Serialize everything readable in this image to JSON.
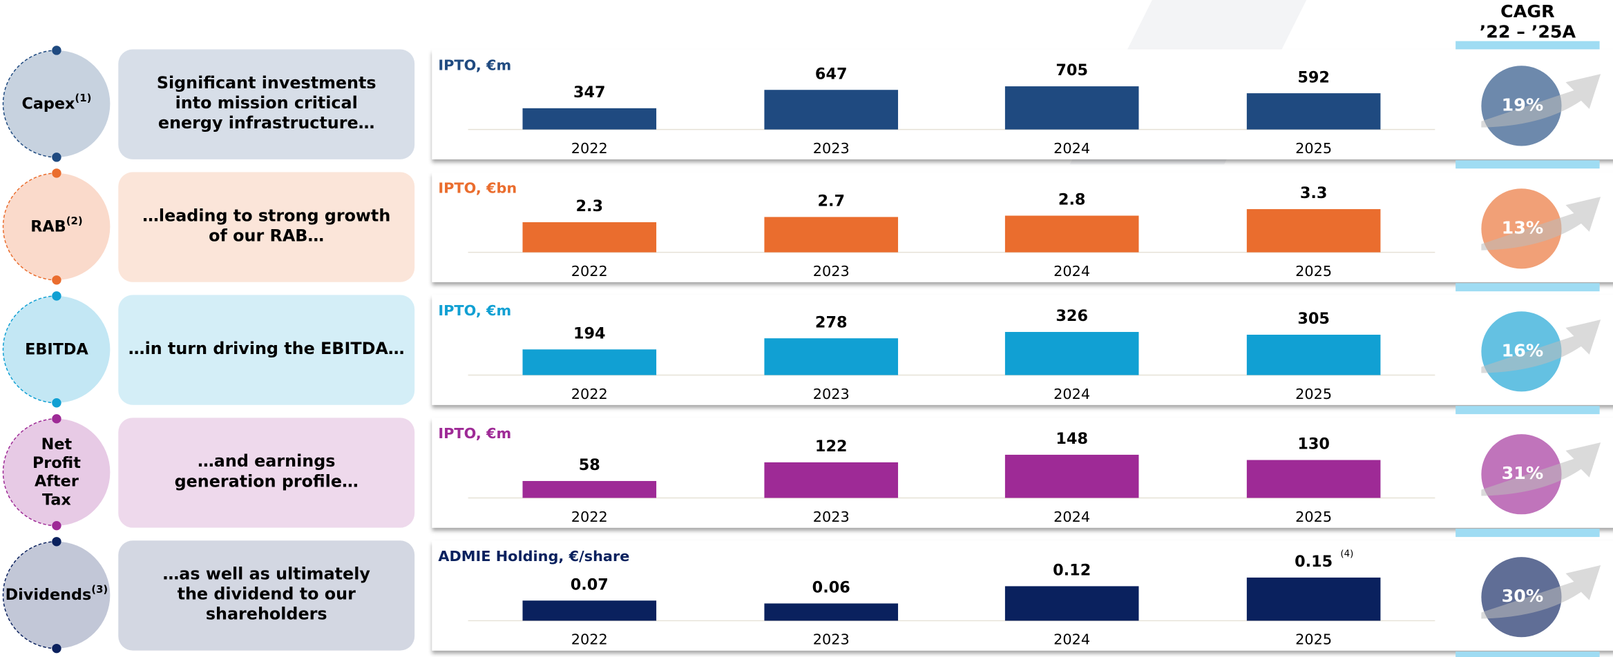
{
  "header": {
    "title_lines": [
      "CAGR",
      "’22 – ’25A"
    ]
  },
  "rows": [
    {
      "label_lines": [
        "Capex"
      ],
      "label_note": "(1)",
      "description_lines": [
        "Significant investments",
        "into mission critical",
        "energy infrastructure…"
      ],
      "cagr": "19%"
    },
    {
      "label_lines": [
        "RAB"
      ],
      "label_note": "(2)",
      "description_lines": [
        "…leading to strong growth",
        "of our RAB…"
      ],
      "cagr": "13%"
    },
    {
      "label_lines": [
        "EBITDA"
      ],
      "description_lines": [
        "…in turn driving the EBITDA…"
      ],
      "cagr": "16%"
    },
    {
      "label_lines": [
        "Net",
        "Profit",
        "After",
        "Tax"
      ],
      "description_lines": [
        "…and earnings",
        "generation profile…"
      ],
      "cagr": "31%"
    },
    {
      "label_lines": [
        "Dividends"
      ],
      "label_note": "(3)",
      "description_lines": [
        "…as well as ultimately",
        "the dividend to our",
        "shareholders"
      ],
      "cagr": "30%"
    }
  ],
  "chart_data": [
    {
      "type": "bar",
      "title": "IPTO, €m",
      "categories": [
        "2022",
        "2023",
        "2024",
        "2025"
      ],
      "values": [
        347,
        647,
        705,
        592
      ],
      "color": "#1f4a80"
    },
    {
      "type": "bar",
      "title": "IPTO, €bn",
      "categories": [
        "2022",
        "2023",
        "2024",
        "2025"
      ],
      "values": [
        2.3,
        2.7,
        2.8,
        3.3
      ],
      "color": "#ea6d2e"
    },
    {
      "type": "bar",
      "title": "IPTO, €m",
      "categories": [
        "2022",
        "2023",
        "2024",
        "2025"
      ],
      "values": [
        194,
        278,
        326,
        305
      ],
      "color": "#11a0d3"
    },
    {
      "type": "bar",
      "title": "IPTO, €m",
      "categories": [
        "2022",
        "2023",
        "2024",
        "2025"
      ],
      "values": [
        58,
        122,
        148,
        130
      ],
      "color": "#9e2a96"
    },
    {
      "type": "bar",
      "title": "ADMIE Holding, €/share",
      "categories": [
        "2022",
        "2023",
        "2024",
        "2025"
      ],
      "values": [
        0.07,
        0.06,
        0.12,
        0.15
      ],
      "value_notes": [
        null,
        null,
        null,
        "(4)"
      ],
      "color": "#0a215e"
    }
  ]
}
